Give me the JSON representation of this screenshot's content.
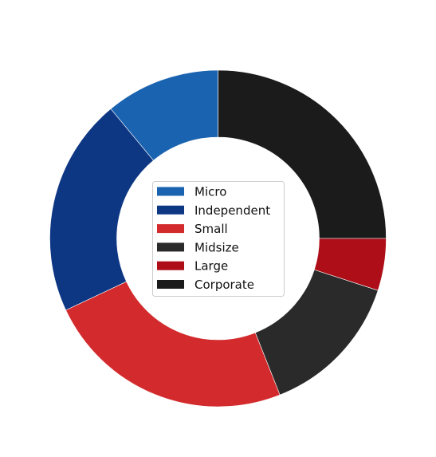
{
  "chart_data": {
    "type": "pie",
    "donut": true,
    "start_angle_deg": 90,
    "direction": "clockwise",
    "categories": [
      "Micro",
      "Independent",
      "Small",
      "Midsize",
      "Large",
      "Corporate"
    ],
    "values": [
      11,
      21,
      24,
      14,
      5,
      25
    ],
    "slice_order": [
      "Corporate",
      "Large",
      "Midsize",
      "Small",
      "Independent",
      "Micro"
    ],
    "colors": {
      "Micro": "#1a63b0",
      "Independent": "#0d3683",
      "Small": "#d32b2d",
      "Midsize": "#2a2a2a",
      "Large": "#ad0e18",
      "Corporate": "#1b1b1b"
    },
    "legend": {
      "placement": "center",
      "entries": [
        "Micro",
        "Independent",
        "Small",
        "Midsize",
        "Large",
        "Corporate"
      ]
    },
    "title": ""
  }
}
